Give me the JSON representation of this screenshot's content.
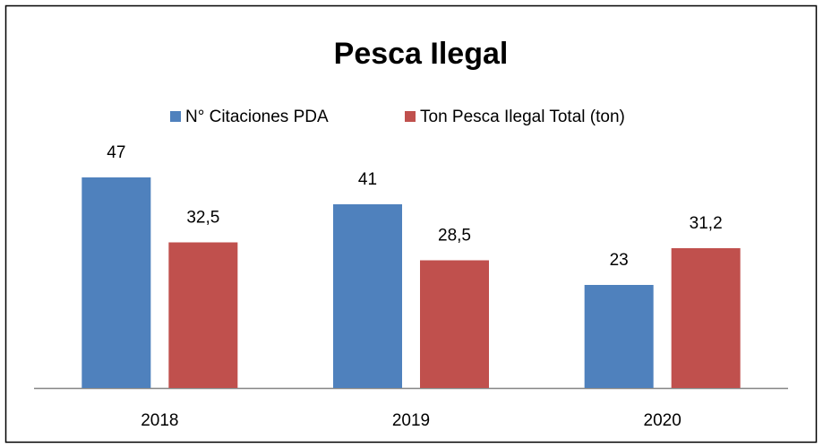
{
  "chart_data": {
    "type": "bar",
    "title": "Pesca Ilegal",
    "categories": [
      "2018",
      "2019",
      "2020"
    ],
    "series": [
      {
        "name": "N° Citaciones PDA",
        "color": "#4f81bd",
        "values": [
          47,
          41,
          23
        ],
        "value_labels": [
          "47",
          "41",
          "23"
        ]
      },
      {
        "name": "Ton Pesca Ilegal Total (ton)",
        "color": "#c0504d",
        "values": [
          32.5,
          28.5,
          31.2
        ],
        "value_labels": [
          "32,5",
          "28,5",
          "31,2"
        ]
      }
    ],
    "legend": "top"
  }
}
